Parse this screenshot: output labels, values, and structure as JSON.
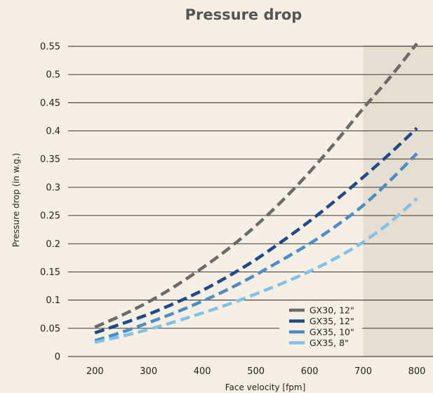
{
  "chart_data": {
    "type": "line",
    "title": "Pressure drop",
    "xlabel": "Face velocity [fpm]",
    "ylabel": "Pressure drop (in w.g.)",
    "xlim": [
      150,
      830
    ],
    "ylim": [
      0,
      0.55
    ],
    "xticks": [
      "200",
      "300",
      "400",
      "500",
      "600",
      "700",
      "800"
    ],
    "yticks": [
      "0",
      "0.05",
      "0.1",
      "0.15",
      "0.2",
      "0.25",
      "0.3",
      "0.35",
      "0.4",
      "0.45",
      "0.5",
      "0.55"
    ],
    "grid": "horizontal",
    "shaded_region": {
      "x_from": 700,
      "x_to": 830,
      "color": "#e6dfd0"
    },
    "legend_position": "bottom-right",
    "series": [
      {
        "name": "GX30, 12\"",
        "color": "#6b6b6b",
        "x": [
          200,
          250,
          300,
          350,
          400,
          450,
          500,
          550,
          600,
          650,
          700,
          750,
          800
        ],
        "y": [
          0.052,
          0.073,
          0.097,
          0.125,
          0.157,
          0.192,
          0.232,
          0.277,
          0.327,
          0.382,
          0.44,
          0.495,
          0.555
        ]
      },
      {
        "name": "GX35, 12\"",
        "color": "#1c4a8c",
        "x": [
          200,
          250,
          300,
          350,
          400,
          450,
          500,
          550,
          600,
          650,
          700,
          750,
          800
        ],
        "y": [
          0.042,
          0.058,
          0.075,
          0.095,
          0.117,
          0.143,
          0.172,
          0.205,
          0.24,
          0.278,
          0.318,
          0.36,
          0.405
        ]
      },
      {
        "name": "GX35, 10\"",
        "color": "#4a8ec8",
        "x": [
          200,
          250,
          300,
          350,
          400,
          450,
          500,
          550,
          600,
          650,
          700,
          750,
          800
        ],
        "y": [
          0.028,
          0.043,
          0.06,
          0.078,
          0.098,
          0.12,
          0.145,
          0.172,
          0.2,
          0.232,
          0.268,
          0.312,
          0.36
        ]
      },
      {
        "name": "GX35, 8\"",
        "color": "#7fc3ea",
        "x": [
          200,
          250,
          300,
          350,
          400,
          450,
          500,
          550,
          600,
          650,
          700,
          750,
          800
        ],
        "y": [
          0.025,
          0.036,
          0.048,
          0.062,
          0.077,
          0.093,
          0.111,
          0.13,
          0.151,
          0.175,
          0.203,
          0.238,
          0.28
        ]
      }
    ]
  }
}
